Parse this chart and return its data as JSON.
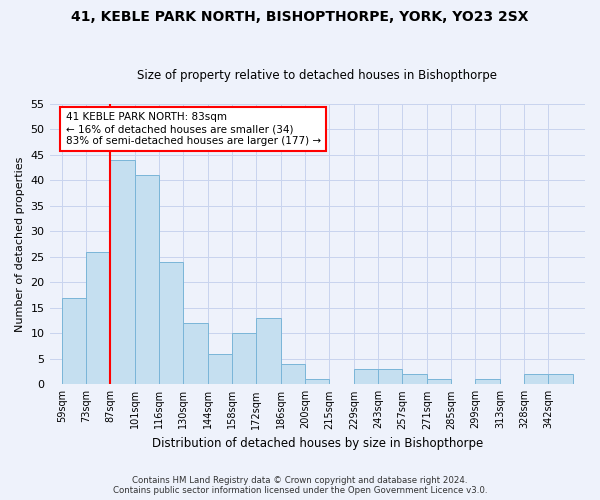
{
  "title": "41, KEBLE PARK NORTH, BISHOPTHORPE, YORK, YO23 2SX",
  "subtitle": "Size of property relative to detached houses in Bishopthorpe",
  "xlabel": "Distribution of detached houses by size in Bishopthorpe",
  "ylabel": "Number of detached properties",
  "bin_labels": [
    "59sqm",
    "73sqm",
    "87sqm",
    "101sqm",
    "116sqm",
    "130sqm",
    "144sqm",
    "158sqm",
    "172sqm",
    "186sqm",
    "200sqm",
    "215sqm",
    "229sqm",
    "243sqm",
    "257sqm",
    "271sqm",
    "285sqm",
    "299sqm",
    "313sqm",
    "328sqm",
    "342sqm"
  ],
  "bar_heights": [
    17,
    26,
    44,
    41,
    24,
    12,
    6,
    10,
    13,
    4,
    1,
    0,
    3,
    3,
    2,
    1,
    0,
    1,
    0,
    2,
    2
  ],
  "bar_color": "#c5dff0",
  "bar_edge_color": "#7ab5d8",
  "ylim": [
    0,
    55
  ],
  "yticks": [
    0,
    5,
    10,
    15,
    20,
    25,
    30,
    35,
    40,
    45,
    50,
    55
  ],
  "red_line_bin_index": 2,
  "annotation_text_line1": "41 KEBLE PARK NORTH: 83sqm",
  "annotation_text_line2": "← 16% of detached houses are smaller (34)",
  "annotation_text_line3": "83% of semi-detached houses are larger (177) →",
  "footer_line1": "Contains HM Land Registry data © Crown copyright and database right 2024.",
  "footer_line2": "Contains public sector information licensed under the Open Government Licence v3.0.",
  "background_color": "#eef2fb",
  "plot_background_color": "#eef2fb"
}
